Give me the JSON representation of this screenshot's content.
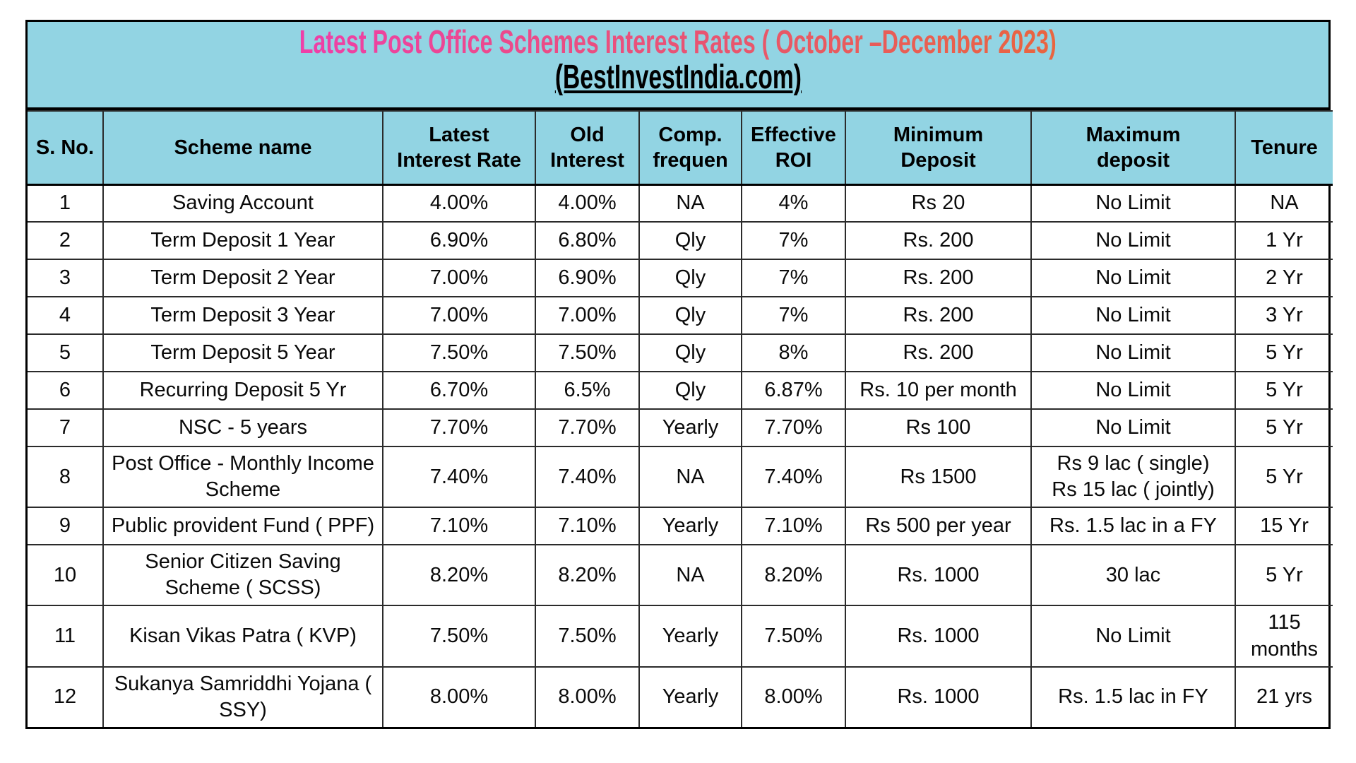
{
  "title": {
    "line1": "Latest Post Office Schemes Interest Rates ( October –December 2023)",
    "line2": "(BestInvestIndia.com)"
  },
  "colors": {
    "band_blue": "#92d4e3",
    "title_gradient_start": "#ee3fa8",
    "title_gradient_mid": "#e85570",
    "title_gradient_end": "#e9653f",
    "title_line2_color": "#000000",
    "grid_line": "#2b2b2b"
  },
  "table": {
    "columns": [
      {
        "key": "sno",
        "label": "S. No."
      },
      {
        "key": "scheme",
        "label": "Scheme name"
      },
      {
        "key": "latest",
        "label": "Latest\nInterest Rate"
      },
      {
        "key": "old",
        "label": "Old\nInterest"
      },
      {
        "key": "comp",
        "label": "Comp.\nfrequen"
      },
      {
        "key": "roi",
        "label": "Effective\nROI"
      },
      {
        "key": "min",
        "label": "Minimum\nDeposit"
      },
      {
        "key": "max",
        "label": "Maximum\ndeposit"
      },
      {
        "key": "tenure",
        "label": "Tenure"
      }
    ],
    "rows": [
      [
        "1",
        "Saving Account",
        "4.00%",
        "4.00%",
        "NA",
        "4%",
        "Rs 20",
        "No Limit",
        "NA"
      ],
      [
        "2",
        "Term Deposit 1 Year",
        "6.90%",
        "6.80%",
        "Qly",
        "7%",
        "Rs. 200",
        "No Limit",
        "1 Yr"
      ],
      [
        "3",
        "Term Deposit 2 Year",
        "7.00%",
        "6.90%",
        "Qly",
        "7%",
        "Rs. 200",
        "No Limit",
        "2 Yr"
      ],
      [
        "4",
        "Term Deposit 3 Year",
        "7.00%",
        "7.00%",
        "Qly",
        "7%",
        "Rs. 200",
        "No Limit",
        "3 Yr"
      ],
      [
        "5",
        "Term Deposit 5 Year",
        "7.50%",
        "7.50%",
        "Qly",
        "8%",
        "Rs. 200",
        "No Limit",
        "5 Yr"
      ],
      [
        "6",
        "Recurring Deposit 5 Yr",
        "6.70%",
        "6.5%",
        "Qly",
        "6.87%",
        "Rs. 10 per month",
        "No Limit",
        "5 Yr"
      ],
      [
        "7",
        "NSC - 5 years",
        "7.70%",
        "7.70%",
        "Yearly",
        "7.70%",
        "Rs 100",
        "No Limit",
        "5 Yr"
      ],
      [
        "8",
        "Post Office - Monthly Income Scheme",
        "7.40%",
        "7.40%",
        "NA",
        "7.40%",
        "Rs 1500",
        "Rs 9 lac ( single)\nRs 15 lac ( jointly)",
        "5 Yr"
      ],
      [
        "9",
        "Public provident Fund ( PPF)",
        "7.10%",
        "7.10%",
        "Yearly",
        "7.10%",
        "Rs 500 per year",
        "Rs. 1.5 lac in a FY",
        "15 Yr"
      ],
      [
        "10",
        "Senior Citizen Saving Scheme ( SCSS)",
        "8.20%",
        "8.20%",
        "NA",
        "8.20%",
        "Rs. 1000",
        "30 lac",
        "5 Yr"
      ],
      [
        "11",
        "Kisan Vikas Patra ( KVP)",
        "7.50%",
        "7.50%",
        "Yearly",
        "7.50%",
        "Rs. 1000",
        "No Limit",
        "115 months"
      ],
      [
        "12",
        "Sukanya Samriddhi Yojana ( SSY)",
        "8.00%",
        "8.00%",
        "Yearly",
        "8.00%",
        "Rs. 1000",
        "Rs. 1.5 lac in FY",
        "21 yrs"
      ]
    ]
  }
}
